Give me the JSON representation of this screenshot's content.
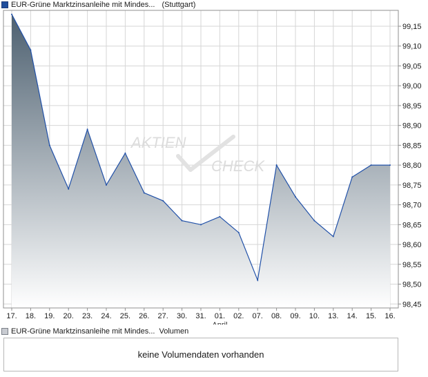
{
  "legend": {
    "instrument": "EUR-Grüne Marktzinsanleihe mit Mindes...",
    "exchange": "(Stuttgart)",
    "volume_instrument": "EUR-Grüne Marktzinsanleihe mit Mindes...",
    "volume_label": "Volumen"
  },
  "watermark": {
    "line1": "AKTIEN",
    "line2": "CHECK"
  },
  "volume_box": {
    "message": "keine Volumendaten vorhanden"
  },
  "chart_data": {
    "type": "area",
    "categories": [
      "17.",
      "18.",
      "19.",
      "20.",
      "23.",
      "24.",
      "25.",
      "26.",
      "27.",
      "30.",
      "31.",
      "01.",
      "02.",
      "07.",
      "08.",
      "09.",
      "10.",
      "13.",
      "14.",
      "15.",
      "16."
    ],
    "month_label": {
      "text": "April",
      "at_category": "01."
    },
    "values": [
      99.18,
      99.09,
      98.85,
      98.74,
      98.89,
      98.75,
      98.83,
      98.73,
      98.71,
      98.66,
      98.65,
      98.67,
      98.63,
      98.51,
      98.8,
      98.72,
      98.66,
      98.62,
      98.77,
      98.8,
      98.8
    ],
    "y_ticks": [
      "99,15",
      "99,10",
      "99,05",
      "99,00",
      "98,95",
      "98,90",
      "98,85",
      "98,80",
      "98,75",
      "98,70",
      "98,65",
      "98,60",
      "98,55",
      "98,50",
      "98,45"
    ],
    "ylim": [
      98.44,
      99.19
    ],
    "grid": true,
    "colors": {
      "line": "#2050a8",
      "fill_top": "#4d6070",
      "fill_bottom": "#ffffff",
      "grid": "#d6d6d6",
      "frame": "#8f8f8f"
    }
  }
}
